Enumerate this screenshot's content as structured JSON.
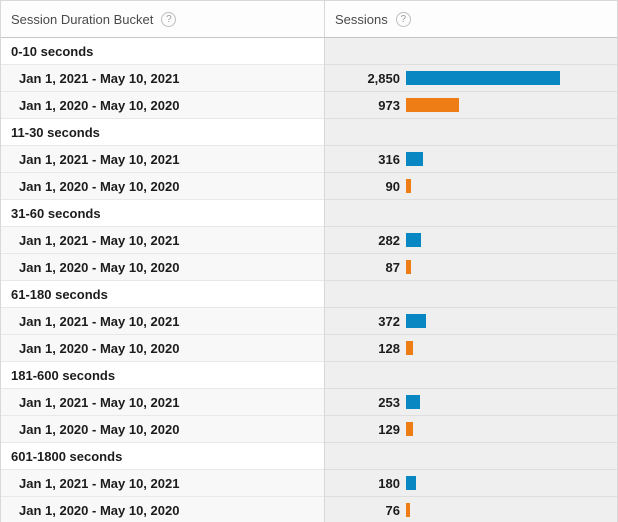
{
  "header": {
    "col1": {
      "label": "Session Duration Bucket",
      "help": "?"
    },
    "col2": {
      "label": "Sessions",
      "help": "?"
    }
  },
  "colors": {
    "series_2021": "#0887c3",
    "series_2020": "#ef7d15",
    "bar_track_bg": "#efefef"
  },
  "table": {
    "groups": [
      {
        "bucket": "0-10 seconds",
        "rows": [
          {
            "label": "Jan 1, 2021 - May 10, 2021",
            "value": "2,850",
            "value_num": 2850,
            "series": "2021"
          },
          {
            "label": "Jan 1, 2020 - May 10, 2020",
            "value": "973",
            "value_num": 973,
            "series": "2020"
          }
        ]
      },
      {
        "bucket": "11-30 seconds",
        "rows": [
          {
            "label": "Jan 1, 2021 - May 10, 2021",
            "value": "316",
            "value_num": 316,
            "series": "2021"
          },
          {
            "label": "Jan 1, 2020 - May 10, 2020",
            "value": "90",
            "value_num": 90,
            "series": "2020"
          }
        ]
      },
      {
        "bucket": "31-60 seconds",
        "rows": [
          {
            "label": "Jan 1, 2021 - May 10, 2021",
            "value": "282",
            "value_num": 282,
            "series": "2021"
          },
          {
            "label": "Jan 1, 2020 - May 10, 2020",
            "value": "87",
            "value_num": 87,
            "series": "2020"
          }
        ]
      },
      {
        "bucket": "61-180 seconds",
        "rows": [
          {
            "label": "Jan 1, 2021 - May 10, 2021",
            "value": "372",
            "value_num": 372,
            "series": "2021"
          },
          {
            "label": "Jan 1, 2020 - May 10, 2020",
            "value": "128",
            "value_num": 128,
            "series": "2020"
          }
        ]
      },
      {
        "bucket": "181-600 seconds",
        "rows": [
          {
            "label": "Jan 1, 2021 - May 10, 2021",
            "value": "253",
            "value_num": 253,
            "series": "2021"
          },
          {
            "label": "Jan 1, 2020 - May 10, 2020",
            "value": "129",
            "value_num": 129,
            "series": "2020"
          }
        ]
      },
      {
        "bucket": "601-1800 seconds",
        "rows": [
          {
            "label": "Jan 1, 2021 - May 10, 2021",
            "value": "180",
            "value_num": 180,
            "series": "2021"
          },
          {
            "label": "Jan 1, 2020 - May 10, 2020",
            "value": "76",
            "value_num": 76,
            "series": "2020"
          }
        ]
      }
    ]
  },
  "chart_data": {
    "type": "bar",
    "orientation": "horizontal",
    "categories": [
      "0-10 seconds",
      "11-30 seconds",
      "31-60 seconds",
      "61-180 seconds",
      "181-600 seconds",
      "601-1800 seconds"
    ],
    "series": [
      {
        "name": "Jan 1, 2021 - May 10, 2021",
        "color": "#0887c3",
        "values": [
          2850,
          316,
          282,
          372,
          253,
          180
        ]
      },
      {
        "name": "Jan 1, 2020 - May 10, 2020",
        "color": "#ef7d15",
        "values": [
          973,
          90,
          87,
          128,
          129,
          76
        ]
      }
    ],
    "max_value": 2850,
    "xlabel": "Sessions",
    "ylabel": "Session Duration Bucket",
    "grid": false,
    "legend_position": "none"
  }
}
